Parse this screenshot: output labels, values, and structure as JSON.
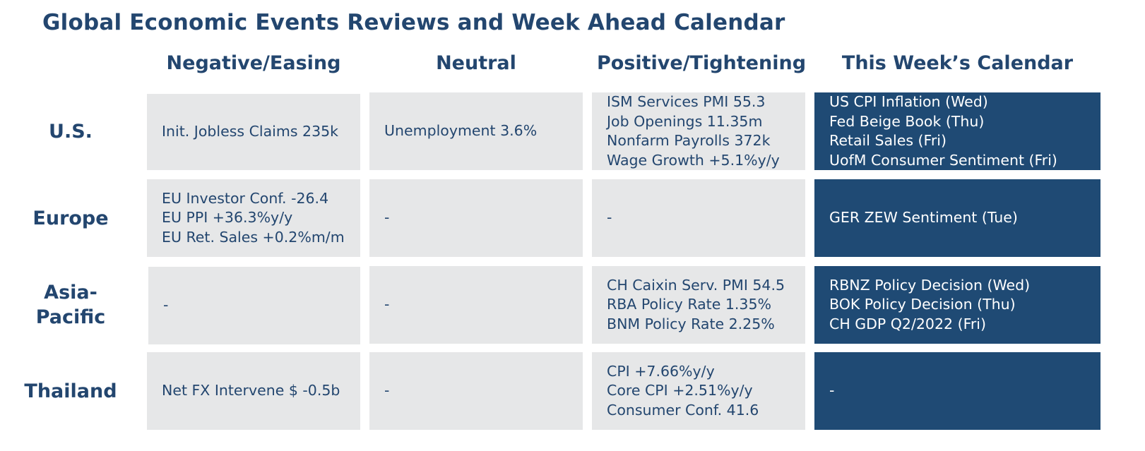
{
  "title": "Global Economic Events Reviews and Week Ahead Calendar",
  "columns": [
    "Negative/Easing",
    "Neutral",
    "Positive/Tightening",
    "This Week’s Calendar"
  ],
  "rows": [
    {
      "label": "U.S.",
      "cells": [
        [
          "Init. Jobless Claims 235k"
        ],
        [
          "Unemployment 3.6%"
        ],
        [
          "ISM Services PMI 55.3",
          "Job Openings 11.35m",
          "Nonfarm Payrolls 372k",
          "Wage Growth +5.1%y/y"
        ],
        [
          "US CPI Inflation (Wed)",
          "Fed Beige Book (Thu)",
          "Retail Sales (Fri)",
          "UofM Consumer Sentiment (Fri)"
        ]
      ]
    },
    {
      "label": "Europe",
      "cells": [
        [
          "EU Investor Conf. -26.4",
          "EU PPI +36.3%y/y",
          "EU Ret. Sales +0.2%m/m"
        ],
        [
          "-"
        ],
        [
          "-"
        ],
        [
          "GER ZEW Sentiment (Tue)"
        ]
      ]
    },
    {
      "label": "Asia-Pacific",
      "label_lines": [
        "Asia-",
        "Pacific"
      ],
      "cells": [
        [
          "-"
        ],
        [
          "-"
        ],
        [
          "CH Caixin Serv. PMI 54.5",
          "RBA Policy Rate 1.35%",
          "BNM Policy Rate 2.25%"
        ],
        [
          "RBNZ Policy Decision (Wed)",
          "BOK Policy Decision (Thu)",
          "CH GDP Q2/2022 (Fri)"
        ]
      ]
    },
    {
      "label": "Thailand",
      "cells": [
        [
          "Net FX Intervene $ -0.5b"
        ],
        [
          "-"
        ],
        [
          "CPI +7.66%y/y",
          "Core CPI +2.51%y/y",
          "Consumer Conf. 41.6"
        ],
        [
          "-"
        ]
      ]
    }
  ],
  "colors": {
    "heading": "#23466f",
    "cell_grey": "#e6e7e8",
    "calendar_navy": "#1f4a74",
    "calendar_text": "#ffffff"
  }
}
